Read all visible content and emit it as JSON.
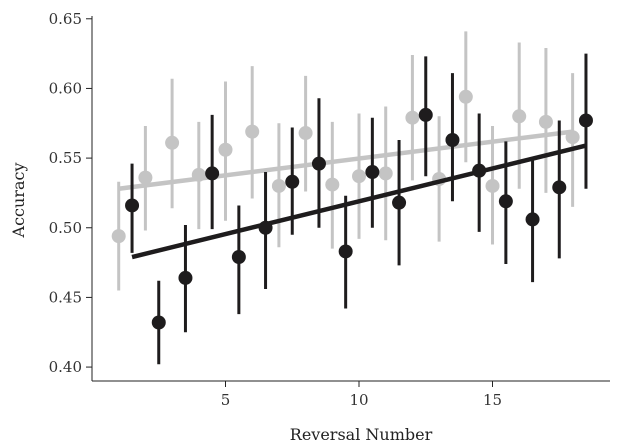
{
  "chart_data": {
    "type": "scatter",
    "title": "",
    "xlabel": "Reversal Number",
    "ylabel": "Accuracy",
    "xlim": [
      0.0,
      19.4
    ],
    "ylim": [
      0.39,
      0.652
    ],
    "xticks": [
      5,
      10,
      15
    ],
    "yticks": [
      0.4,
      0.45,
      0.5,
      0.55,
      0.6,
      0.65
    ],
    "yticklabels": [
      "0.40",
      "0.45",
      "0.50",
      "0.55",
      "0.60",
      "0.65"
    ],
    "grid": false,
    "legend": "none",
    "series": [
      {
        "color": "#c4c4c4",
        "x": [
          1,
          2,
          3,
          4,
          5,
          6,
          7,
          8,
          9,
          10,
          11,
          12,
          13,
          14,
          15,
          16,
          17,
          18
        ],
        "y": [
          0.494,
          0.536,
          0.561,
          0.538,
          0.556,
          0.569,
          0.53,
          0.568,
          0.531,
          0.537,
          0.539,
          0.579,
          0.535,
          0.594,
          0.53,
          0.58,
          0.576,
          0.565
        ],
        "err_low": [
          0.455,
          0.498,
          0.514,
          0.499,
          0.505,
          0.521,
          0.486,
          0.526,
          0.485,
          0.492,
          0.491,
          0.534,
          0.49,
          0.547,
          0.488,
          0.528,
          0.525,
          0.515
        ],
        "err_high": [
          0.533,
          0.573,
          0.607,
          0.576,
          0.605,
          0.616,
          0.575,
          0.609,
          0.576,
          0.582,
          0.587,
          0.624,
          0.58,
          0.641,
          0.573,
          0.633,
          0.629,
          0.611
        ],
        "trend": [
          [
            1,
            0.528
          ],
          [
            18,
            0.569
          ]
        ]
      },
      {
        "color": "#1e1c1d",
        "x": [
          1.5,
          2.5,
          3.5,
          4.5,
          5.5,
          6.5,
          7.5,
          8.5,
          9.5,
          10.5,
          11.5,
          12.5,
          13.5,
          14.5,
          15.5,
          16.5,
          17.5,
          18.5
        ],
        "y": [
          0.516,
          0.432,
          0.464,
          0.539,
          0.479,
          0.5,
          0.533,
          0.546,
          0.483,
          0.54,
          0.518,
          0.581,
          0.563,
          0.541,
          0.519,
          0.506,
          0.529,
          0.577
        ],
        "err_low": [
          0.482,
          0.402,
          0.425,
          0.499,
          0.438,
          0.456,
          0.495,
          0.5,
          0.442,
          0.5,
          0.473,
          0.537,
          0.519,
          0.497,
          0.474,
          0.461,
          0.478,
          0.528
        ],
        "err_high": [
          0.546,
          0.462,
          0.502,
          0.581,
          0.516,
          0.54,
          0.572,
          0.593,
          0.523,
          0.579,
          0.563,
          0.623,
          0.611,
          0.582,
          0.562,
          0.55,
          0.577,
          0.625
        ],
        "trend": [
          [
            1.5,
            0.479
          ],
          [
            18.5,
            0.559
          ]
        ]
      }
    ]
  }
}
